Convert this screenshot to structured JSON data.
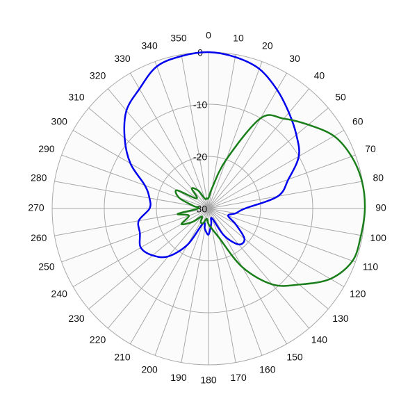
{
  "chart_data": {
    "type": "polar",
    "angles": [
      0,
      10,
      20,
      30,
      40,
      50,
      60,
      70,
      80,
      90,
      100,
      110,
      120,
      130,
      140,
      150,
      160,
      170,
      180,
      190,
      200,
      210,
      220,
      230,
      240,
      250,
      260,
      270,
      280,
      290,
      300,
      310,
      320,
      330,
      340,
      350
    ],
    "rlim": [
      -30,
      0
    ],
    "rticks": [
      0,
      -10,
      -20,
      -30
    ],
    "grid": true,
    "series": [
      {
        "color": "#0000ee",
        "values": [
          0,
          -0.5,
          -1.5,
          -3.7,
          -6,
          -8,
          -10,
          -13.7,
          -16.5,
          -23,
          -24.7,
          -26,
          -24,
          -21,
          -21,
          -24,
          -28,
          -27,
          -25,
          -26,
          -27,
          -22,
          -18,
          -16,
          -15,
          -16,
          -16.4,
          -18.7,
          -18.5,
          -17,
          -12.7,
          -9,
          -5.5,
          -3.5,
          -1,
          -0.3
        ]
      },
      {
        "color": "#1a7f1a",
        "values": [
          -28,
          -26,
          -20,
          -10,
          -7.5,
          -5,
          -2.2,
          -0.8,
          -0.1,
          0,
          -0.3,
          -0.6,
          -3,
          -7.3,
          -11,
          -17,
          -24,
          -26,
          -27,
          -28,
          -27,
          -27,
          -28,
          -26,
          -24,
          -26,
          -24,
          -28,
          -27,
          -24,
          -23,
          -27,
          -25,
          -26,
          -28,
          -28
        ]
      }
    ]
  }
}
